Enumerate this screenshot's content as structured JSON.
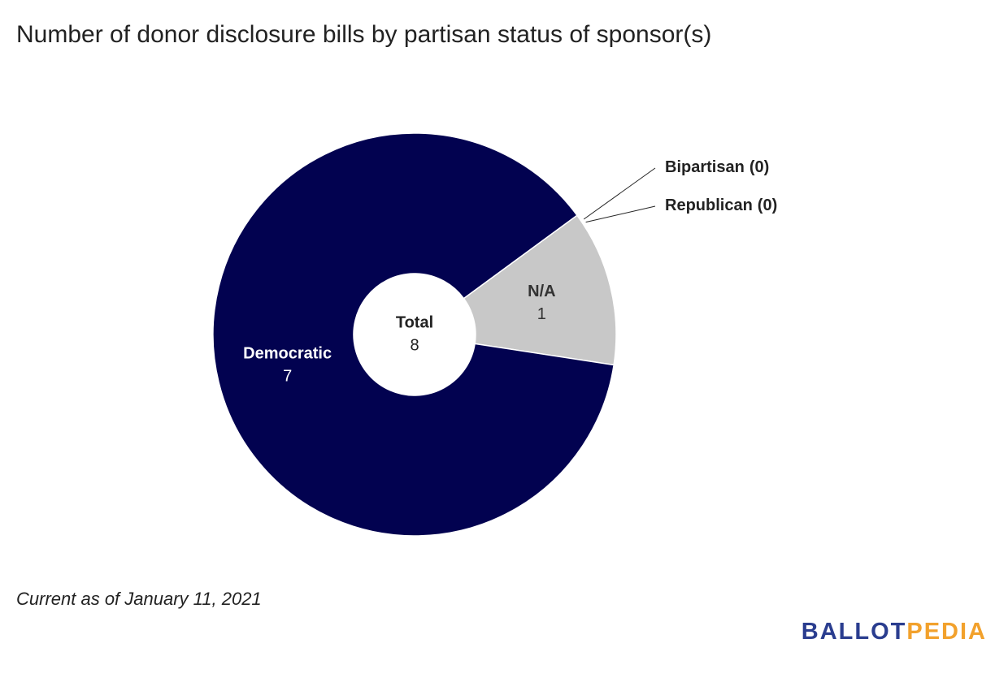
{
  "chart_data": {
    "type": "pie",
    "donut": true,
    "title": "Number of donor disclosure bills by partisan status of sponsor(s)",
    "categories": [
      "N/A",
      "Democratic",
      "Republican",
      "Bipartisan"
    ],
    "values": [
      1,
      7,
      0,
      0
    ],
    "value_labels": [
      "1",
      "7",
      "(0)",
      "(0)"
    ],
    "colors": [
      "#c8c8c8",
      "#020250",
      "#c0392b",
      "#7b2d8e"
    ],
    "center_label": "Total",
    "total": 8
  },
  "footnote": "Current as of January 11, 2021",
  "logo": {
    "first": "BALLOT",
    "second": "PEDIA"
  }
}
